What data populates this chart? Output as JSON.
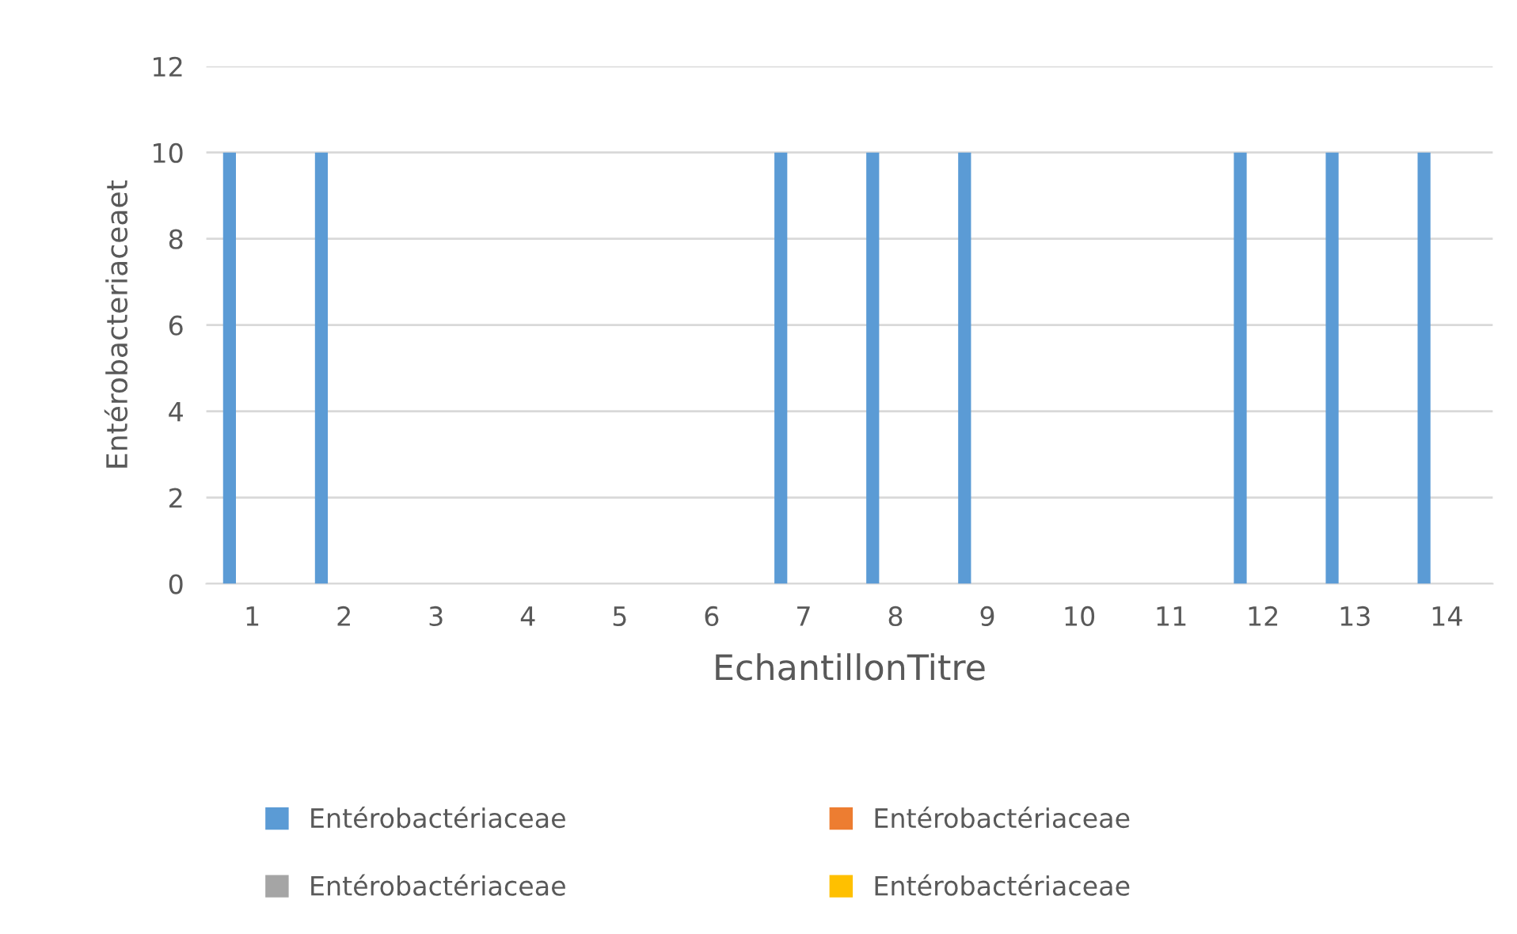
{
  "chart_data": {
    "type": "bar",
    "xlabel": "EchantillonTitre",
    "ylabel": "Entérobacteriaceaet",
    "categories": [
      "1",
      "2",
      "3",
      "4",
      "5",
      "6",
      "7",
      "8",
      "9",
      "10",
      "11",
      "12",
      "13",
      "14"
    ],
    "series": [
      {
        "name": "Entérobactériaceae",
        "color": "#5b9bd5",
        "values": [
          10,
          10,
          0,
          0,
          0,
          0,
          10,
          10,
          10,
          0,
          0,
          10,
          10,
          10
        ]
      },
      {
        "name": "Entérobactériaceae",
        "color": "#ed7d31",
        "values": [
          null,
          null,
          null,
          null,
          null,
          null,
          null,
          null,
          null,
          null,
          null,
          null,
          null,
          null
        ]
      },
      {
        "name": "Entérobactériaceae",
        "color": "#a5a5a5",
        "values": [
          null,
          null,
          null,
          null,
          null,
          null,
          null,
          null,
          null,
          null,
          null,
          null,
          null,
          null
        ]
      },
      {
        "name": "Entérobactériaceae",
        "color": "#ffc000",
        "values": [
          null,
          null,
          null,
          null,
          null,
          null,
          null,
          null,
          null,
          null,
          null,
          null,
          null,
          null
        ]
      }
    ],
    "ylim": [
      0,
      12
    ],
    "yticks": [
      0,
      2,
      4,
      6,
      8,
      10,
      12
    ],
    "grid": "y",
    "legend": "bottom"
  }
}
